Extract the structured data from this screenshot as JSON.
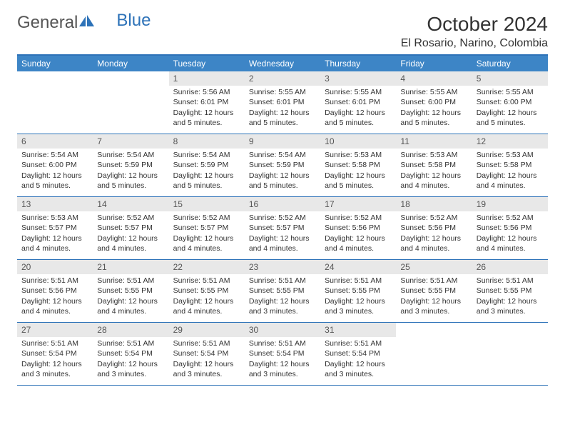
{
  "brand": {
    "part1": "General",
    "part2": "Blue"
  },
  "title": "October 2024",
  "location": "El Rosario, Narino, Colombia",
  "colors": {
    "header_bg": "#3d85c6",
    "border": "#2d72b8",
    "daynum_bg": "#e8e8e8",
    "text": "#333333"
  },
  "dayHeaders": [
    "Sunday",
    "Monday",
    "Tuesday",
    "Wednesday",
    "Thursday",
    "Friday",
    "Saturday"
  ],
  "startOffset": 2,
  "days": [
    {
      "n": 1,
      "sr": "5:56 AM",
      "ss": "6:01 PM",
      "dl": "12 hours and 5 minutes."
    },
    {
      "n": 2,
      "sr": "5:55 AM",
      "ss": "6:01 PM",
      "dl": "12 hours and 5 minutes."
    },
    {
      "n": 3,
      "sr": "5:55 AM",
      "ss": "6:01 PM",
      "dl": "12 hours and 5 minutes."
    },
    {
      "n": 4,
      "sr": "5:55 AM",
      "ss": "6:00 PM",
      "dl": "12 hours and 5 minutes."
    },
    {
      "n": 5,
      "sr": "5:55 AM",
      "ss": "6:00 PM",
      "dl": "12 hours and 5 minutes."
    },
    {
      "n": 6,
      "sr": "5:54 AM",
      "ss": "6:00 PM",
      "dl": "12 hours and 5 minutes."
    },
    {
      "n": 7,
      "sr": "5:54 AM",
      "ss": "5:59 PM",
      "dl": "12 hours and 5 minutes."
    },
    {
      "n": 8,
      "sr": "5:54 AM",
      "ss": "5:59 PM",
      "dl": "12 hours and 5 minutes."
    },
    {
      "n": 9,
      "sr": "5:54 AM",
      "ss": "5:59 PM",
      "dl": "12 hours and 5 minutes."
    },
    {
      "n": 10,
      "sr": "5:53 AM",
      "ss": "5:58 PM",
      "dl": "12 hours and 5 minutes."
    },
    {
      "n": 11,
      "sr": "5:53 AM",
      "ss": "5:58 PM",
      "dl": "12 hours and 4 minutes."
    },
    {
      "n": 12,
      "sr": "5:53 AM",
      "ss": "5:58 PM",
      "dl": "12 hours and 4 minutes."
    },
    {
      "n": 13,
      "sr": "5:53 AM",
      "ss": "5:57 PM",
      "dl": "12 hours and 4 minutes."
    },
    {
      "n": 14,
      "sr": "5:52 AM",
      "ss": "5:57 PM",
      "dl": "12 hours and 4 minutes."
    },
    {
      "n": 15,
      "sr": "5:52 AM",
      "ss": "5:57 PM",
      "dl": "12 hours and 4 minutes."
    },
    {
      "n": 16,
      "sr": "5:52 AM",
      "ss": "5:57 PM",
      "dl": "12 hours and 4 minutes."
    },
    {
      "n": 17,
      "sr": "5:52 AM",
      "ss": "5:56 PM",
      "dl": "12 hours and 4 minutes."
    },
    {
      "n": 18,
      "sr": "5:52 AM",
      "ss": "5:56 PM",
      "dl": "12 hours and 4 minutes."
    },
    {
      "n": 19,
      "sr": "5:52 AM",
      "ss": "5:56 PM",
      "dl": "12 hours and 4 minutes."
    },
    {
      "n": 20,
      "sr": "5:51 AM",
      "ss": "5:56 PM",
      "dl": "12 hours and 4 minutes."
    },
    {
      "n": 21,
      "sr": "5:51 AM",
      "ss": "5:55 PM",
      "dl": "12 hours and 4 minutes."
    },
    {
      "n": 22,
      "sr": "5:51 AM",
      "ss": "5:55 PM",
      "dl": "12 hours and 4 minutes."
    },
    {
      "n": 23,
      "sr": "5:51 AM",
      "ss": "5:55 PM",
      "dl": "12 hours and 3 minutes."
    },
    {
      "n": 24,
      "sr": "5:51 AM",
      "ss": "5:55 PM",
      "dl": "12 hours and 3 minutes."
    },
    {
      "n": 25,
      "sr": "5:51 AM",
      "ss": "5:55 PM",
      "dl": "12 hours and 3 minutes."
    },
    {
      "n": 26,
      "sr": "5:51 AM",
      "ss": "5:55 PM",
      "dl": "12 hours and 3 minutes."
    },
    {
      "n": 27,
      "sr": "5:51 AM",
      "ss": "5:54 PM",
      "dl": "12 hours and 3 minutes."
    },
    {
      "n": 28,
      "sr": "5:51 AM",
      "ss": "5:54 PM",
      "dl": "12 hours and 3 minutes."
    },
    {
      "n": 29,
      "sr": "5:51 AM",
      "ss": "5:54 PM",
      "dl": "12 hours and 3 minutes."
    },
    {
      "n": 30,
      "sr": "5:51 AM",
      "ss": "5:54 PM",
      "dl": "12 hours and 3 minutes."
    },
    {
      "n": 31,
      "sr": "5:51 AM",
      "ss": "5:54 PM",
      "dl": "12 hours and 3 minutes."
    }
  ],
  "labels": {
    "sunrise": "Sunrise: ",
    "sunset": "Sunset: ",
    "daylight": "Daylight: "
  }
}
